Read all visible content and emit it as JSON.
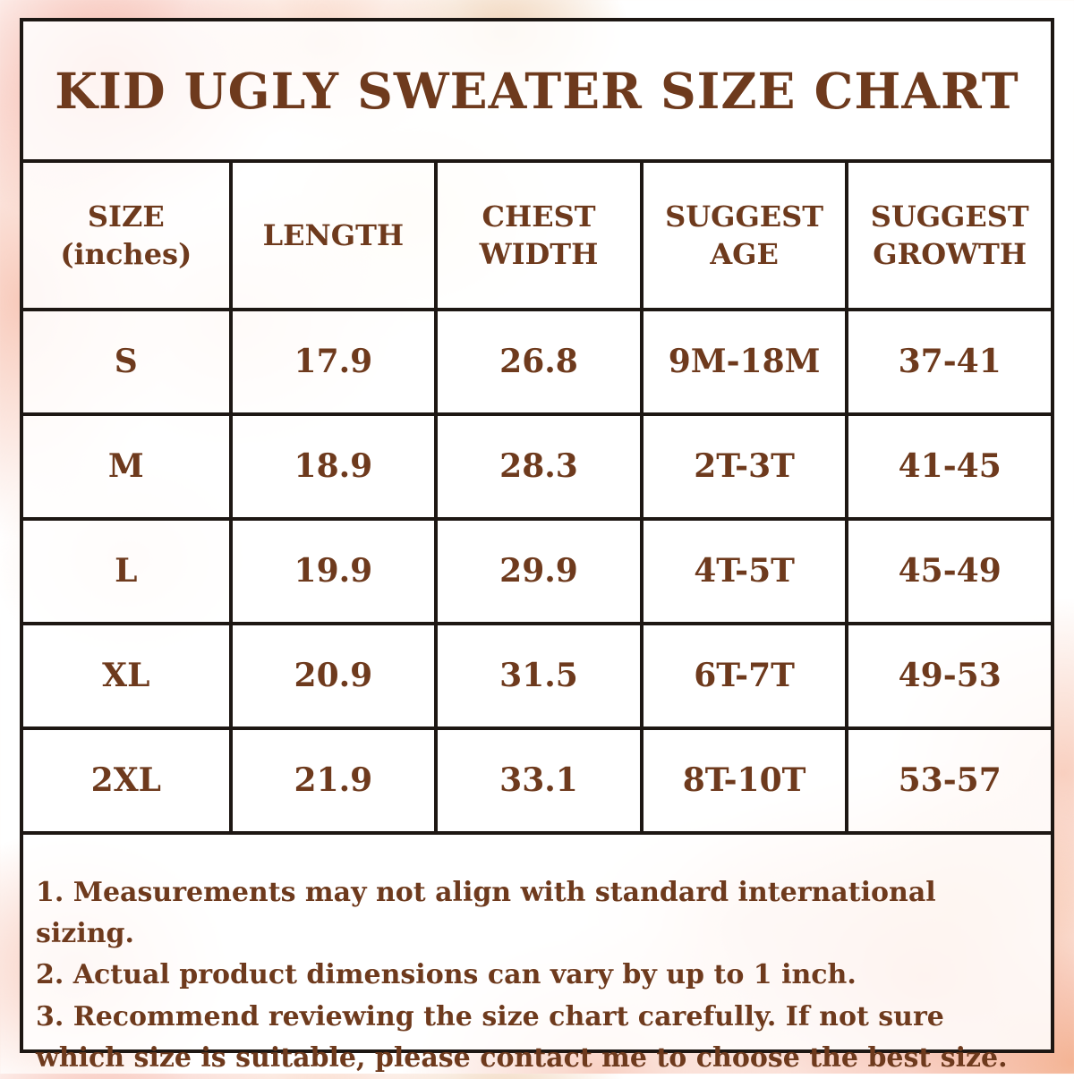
{
  "title": "KID UGLY SWEATER SIZE CHART",
  "table": {
    "headers": [
      "SIZE (inches)",
      "LENGTH",
      "CHEST WIDTH",
      "SUGGEST AGE",
      "SUGGEST GROWTH"
    ],
    "rows": [
      [
        "S",
        "17.9",
        "26.8",
        "9M-18M",
        "37-41"
      ],
      [
        "M",
        "18.9",
        "28.3",
        "2T-3T",
        "41-45"
      ],
      [
        "L",
        "19.9",
        "29.9",
        "4T-5T",
        "45-49"
      ],
      [
        "XL",
        "20.9",
        "31.5",
        "6T-7T",
        "49-53"
      ],
      [
        "2XL",
        "21.9",
        "33.1",
        "8T-10T",
        "53-57"
      ]
    ]
  },
  "notes": [
    "1. Measurements may not align with standard international sizing.",
    "2. Actual product dimensions can vary by up to 1 inch.",
    "3. Recommend reviewing the size chart carefully. If not sure which size is suitable, please contact me to choose the best size."
  ],
  "colors": {
    "text_brown": "#6e3a1d",
    "border_black": "#1d1713",
    "watercolor_pink": "#f3a891",
    "watercolor_peach": "#f7c8b2",
    "watercolor_yellow": "#fae3b6"
  }
}
